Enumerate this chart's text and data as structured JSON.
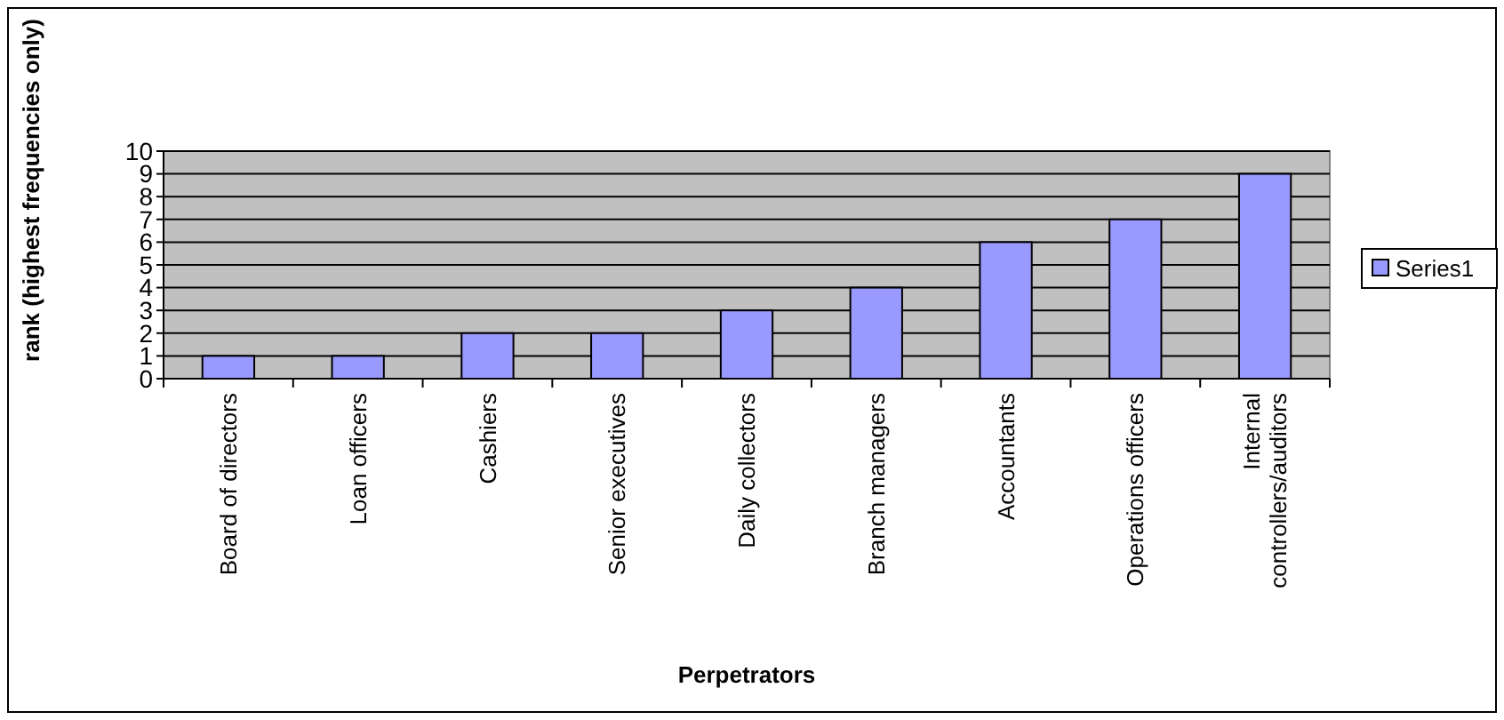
{
  "chart_data": {
    "type": "bar",
    "xlabel": "Perpetrators",
    "ylabel": "rank (highest frequencies only)",
    "categories": [
      "Board of directors",
      "Loan officers",
      "Cashiers",
      "Senior executives",
      "Daily collectors",
      "Branch managers",
      "Accountants",
      "Operations officers",
      "Internal controllers/auditors"
    ],
    "series": [
      {
        "name": "Series1",
        "color": "#9999ff",
        "values": [
          1,
          1,
          2,
          2,
          3,
          4,
          6,
          7,
          9
        ]
      }
    ],
    "ylim": [
      0,
      10
    ],
    "yticks": [
      0,
      1,
      2,
      3,
      4,
      5,
      6,
      7,
      8,
      9,
      10
    ],
    "grid": "y",
    "legend": "right"
  }
}
